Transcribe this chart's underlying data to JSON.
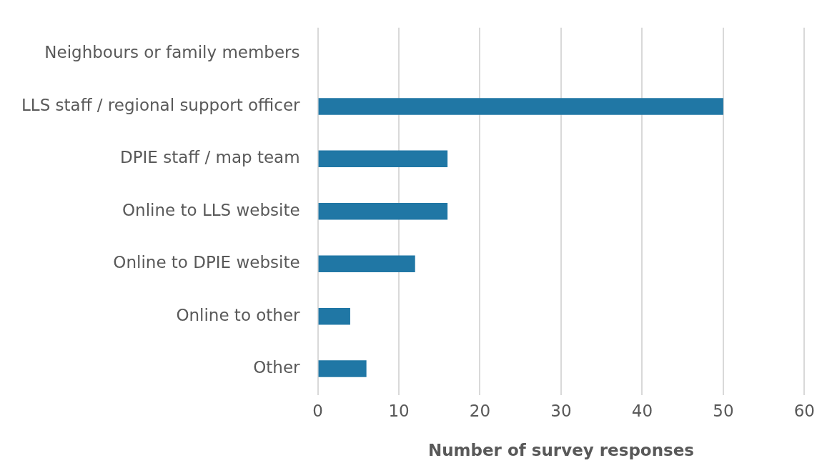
{
  "chart_data": {
    "type": "bar",
    "orientation": "horizontal",
    "xlabel": "Number of survey responses",
    "categories": [
      "Neighbours or family members",
      "LLS staff / regional support officer",
      "DPIE staff / map team",
      "Online to LLS website",
      "Online to DPIE website",
      "Online to other",
      "Other"
    ],
    "values": [
      0,
      50,
      16,
      16,
      12,
      4,
      6
    ],
    "color": "#2077a5",
    "xlim": [
      0,
      60
    ],
    "xticks": [
      0,
      10,
      20,
      30,
      40,
      50,
      60
    ],
    "grid": "x",
    "legend": false
  }
}
